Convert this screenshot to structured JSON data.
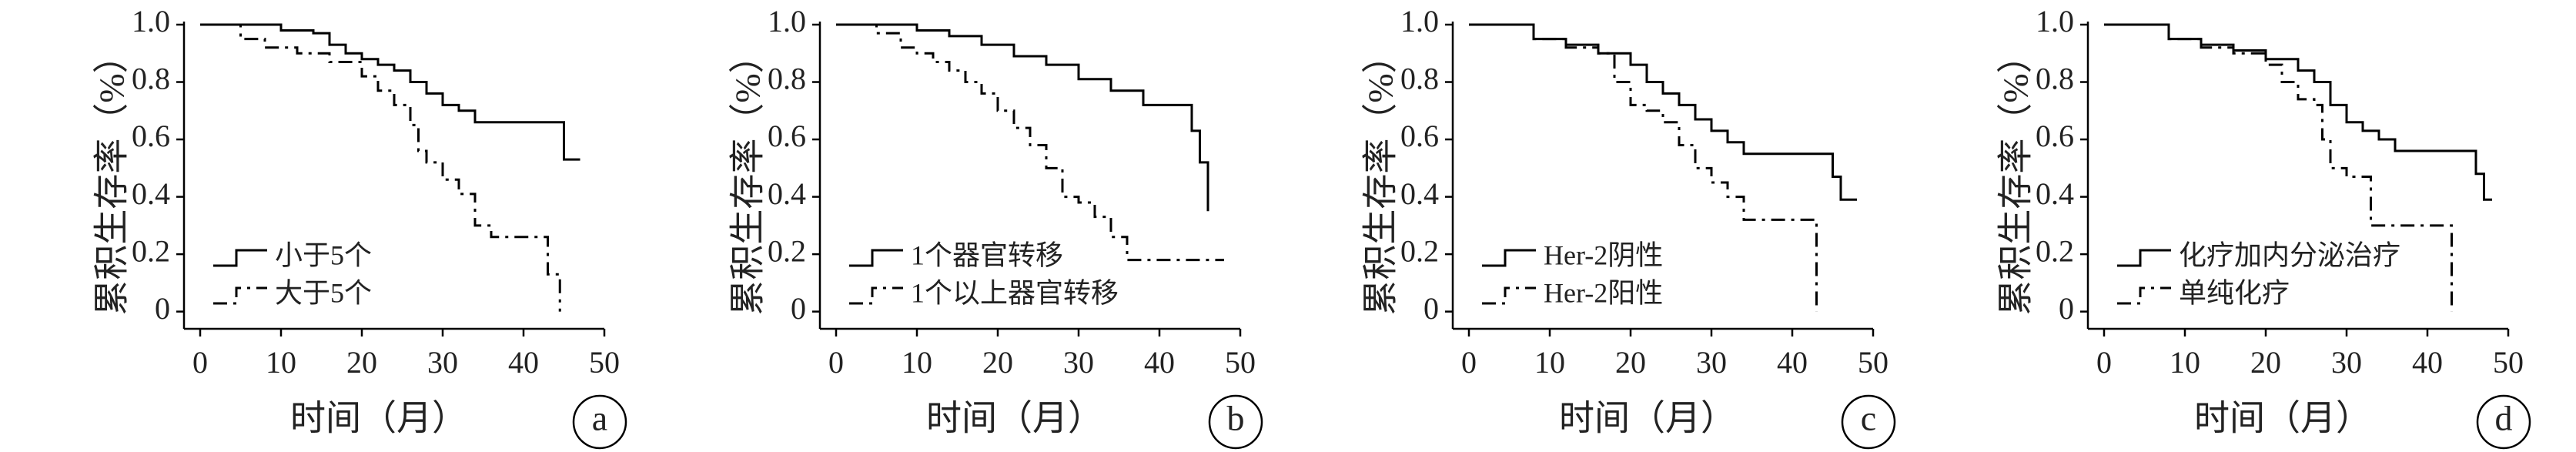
{
  "chart_data": [
    {
      "type": "line",
      "step": "post",
      "panel_label": "a",
      "x_label": "时间（月）",
      "y_label": "累积生存率（%）",
      "xlim": [
        -2,
        50
      ],
      "ylim": [
        -0.06,
        1.0
      ],
      "xticks": [
        0,
        10,
        20,
        30,
        40,
        50
      ],
      "yticks": [
        {
          "value": 1,
          "label": "1.0"
        },
        0.8,
        0.6,
        0.4,
        0.2,
        0
      ],
      "legend": "lower left",
      "series": [
        {
          "name": "小于5个",
          "color": "#000000",
          "dash": "solid",
          "x": [
            0,
            10,
            14,
            16,
            18,
            20,
            22,
            24,
            26,
            28,
            30,
            32,
            34,
            45,
            47
          ],
          "values": [
            1,
            0.98,
            0.97,
            0.93,
            0.9,
            0.88,
            0.86,
            0.84,
            0.8,
            0.76,
            0.72,
            0.7,
            0.66,
            0.53,
            0.53
          ]
        },
        {
          "name": "大于5个",
          "color": "#000000",
          "dash": "dashdot",
          "x": [
            0,
            5,
            8,
            12,
            16,
            20,
            22,
            24,
            26,
            27,
            28,
            30,
            32,
            34,
            36,
            43,
            44.5
          ],
          "values": [
            1,
            0.95,
            0.92,
            0.9,
            0.87,
            0.82,
            0.77,
            0.72,
            0.65,
            0.56,
            0.52,
            0.46,
            0.41,
            0.3,
            0.26,
            0.13,
            0
          ]
        }
      ]
    },
    {
      "type": "line",
      "step": "post",
      "panel_label": "b",
      "x_label": "时间（月）",
      "y_label": "累积生存率（%）",
      "xlim": [
        -2,
        50
      ],
      "ylim": [
        -0.06,
        1.0
      ],
      "xticks": [
        0,
        10,
        20,
        30,
        40,
        50
      ],
      "yticks": [
        {
          "value": 1,
          "label": "1.0"
        },
        0.8,
        0.6,
        0.4,
        0.2,
        0
      ],
      "legend": "lower left",
      "series": [
        {
          "name": "1个器官转移",
          "color": "#000000",
          "dash": "solid",
          "x": [
            0,
            10,
            14,
            18,
            22,
            26,
            30,
            34,
            38,
            44,
            45,
            46
          ],
          "values": [
            1,
            0.98,
            0.96,
            0.93,
            0.89,
            0.86,
            0.81,
            0.77,
            0.72,
            0.63,
            0.52,
            0.35
          ]
        },
        {
          "name": "1个以上器官转移",
          "color": "#000000",
          "dash": "dashdot",
          "x": [
            0,
            5,
            8,
            10,
            12,
            14,
            16,
            18,
            20,
            22,
            24,
            26,
            28,
            30,
            32,
            34,
            36,
            48
          ],
          "values": [
            1,
            0.97,
            0.92,
            0.9,
            0.87,
            0.84,
            0.8,
            0.76,
            0.7,
            0.64,
            0.58,
            0.5,
            0.4,
            0.38,
            0.33,
            0.26,
            0.18,
            0.18
          ]
        }
      ]
    },
    {
      "type": "line",
      "step": "post",
      "panel_label": "c",
      "x_label": "时间（月）",
      "y_label": "累积生存率（%）",
      "xlim": [
        -2,
        50
      ],
      "ylim": [
        -0.06,
        1.0
      ],
      "xticks": [
        0,
        10,
        20,
        30,
        40,
        50
      ],
      "yticks": [
        {
          "value": 1,
          "label": "1.0"
        },
        0.8,
        0.6,
        0.4,
        0.2,
        0
      ],
      "legend": "lower left",
      "series": [
        {
          "name": "Her-2阴性",
          "color": "#000000",
          "dash": "solid",
          "x": [
            0,
            8,
            12,
            16,
            20,
            22,
            24,
            26,
            28,
            30,
            32,
            34,
            45,
            46,
            48
          ],
          "values": [
            1,
            0.95,
            0.93,
            0.9,
            0.86,
            0.8,
            0.76,
            0.72,
            0.67,
            0.63,
            0.59,
            0.55,
            0.47,
            0.39,
            0.39
          ]
        },
        {
          "name": "Her-2阳性",
          "color": "#000000",
          "dash": "dashdot",
          "x": [
            0,
            8,
            12,
            16,
            18,
            20,
            22,
            24,
            26,
            28,
            30,
            32,
            34,
            43
          ],
          "values": [
            1,
            0.95,
            0.92,
            0.9,
            0.8,
            0.72,
            0.7,
            0.66,
            0.58,
            0.5,
            0.45,
            0.4,
            0.32,
            0
          ]
        }
      ]
    },
    {
      "type": "line",
      "step": "post",
      "panel_label": "d",
      "x_label": "时间（月）",
      "y_label": "累积生存率（%）",
      "xlim": [
        -2,
        50
      ],
      "ylim": [
        -0.06,
        1.0
      ],
      "xticks": [
        0,
        10,
        20,
        30,
        40,
        50
      ],
      "yticks": [
        {
          "value": 1,
          "label": "1.0"
        },
        0.8,
        0.6,
        0.4,
        0.2,
        0
      ],
      "legend": "lower left",
      "series": [
        {
          "name": "化疗加内分泌治疗",
          "color": "#000000",
          "dash": "solid",
          "x": [
            0,
            8,
            12,
            16,
            20,
            24,
            26,
            28,
            30,
            32,
            34,
            36,
            46,
            47,
            48
          ],
          "values": [
            1,
            0.95,
            0.93,
            0.91,
            0.88,
            0.84,
            0.8,
            0.72,
            0.66,
            0.63,
            0.6,
            0.56,
            0.48,
            0.39,
            0.39
          ]
        },
        {
          "name": "单纯化疗",
          "color": "#000000",
          "dash": "dashdot",
          "x": [
            0,
            8,
            12,
            16,
            20,
            22,
            24,
            26,
            27,
            28,
            30,
            33,
            43
          ],
          "values": [
            1,
            0.95,
            0.92,
            0.9,
            0.86,
            0.8,
            0.74,
            0.72,
            0.6,
            0.5,
            0.47,
            0.3,
            0
          ]
        }
      ]
    }
  ]
}
